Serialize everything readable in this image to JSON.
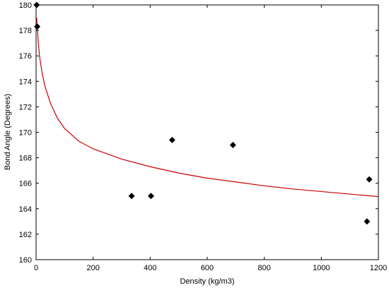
{
  "chart_data": {
    "type": "scatter",
    "title": "",
    "xlabel": "Density (kg/m3)",
    "ylabel": "Bond Angle (Degrees)",
    "xlim": [
      0,
      1200
    ],
    "ylim": [
      160,
      180
    ],
    "xticks": [
      0,
      200,
      400,
      600,
      800,
      1000,
      1200
    ],
    "yticks": [
      160,
      162,
      164,
      166,
      168,
      170,
      172,
      174,
      176,
      178,
      180
    ],
    "grid": false,
    "legend": "none",
    "series": [
      {
        "marker": "diamond",
        "color": "#000000",
        "points": [
          {
            "x": 2,
            "y": 180
          },
          {
            "x": 4,
            "y": 178.3
          },
          {
            "x": 335,
            "y": 165
          },
          {
            "x": 403,
            "y": 165
          },
          {
            "x": 477,
            "y": 169.4
          },
          {
            "x": 690,
            "y": 169
          },
          {
            "x": 1160,
            "y": 163
          },
          {
            "x": 1168,
            "y": 166.3
          }
        ]
      },
      {
        "kind": "fit-line",
        "color": "#cc0000",
        "points": [
          {
            "x": 2,
            "y": 179
          },
          {
            "x": 5,
            "y": 178
          },
          {
            "x": 8,
            "y": 177
          },
          {
            "x": 12,
            "y": 176
          },
          {
            "x": 20,
            "y": 174.8
          },
          {
            "x": 30,
            "y": 173.7
          },
          {
            "x": 50,
            "y": 172.3
          },
          {
            "x": 75,
            "y": 171.1
          },
          {
            "x": 100,
            "y": 170.3
          },
          {
            "x": 150,
            "y": 169.3
          },
          {
            "x": 200,
            "y": 168.7
          },
          {
            "x": 300,
            "y": 167.9
          },
          {
            "x": 400,
            "y": 167.3
          },
          {
            "x": 500,
            "y": 166.8
          },
          {
            "x": 600,
            "y": 166.4
          },
          {
            "x": 700,
            "y": 166.1
          },
          {
            "x": 800,
            "y": 165.8
          },
          {
            "x": 900,
            "y": 165.55
          },
          {
            "x": 1000,
            "y": 165.35
          },
          {
            "x": 1100,
            "y": 165.15
          },
          {
            "x": 1200,
            "y": 164.95
          }
        ]
      }
    ]
  }
}
